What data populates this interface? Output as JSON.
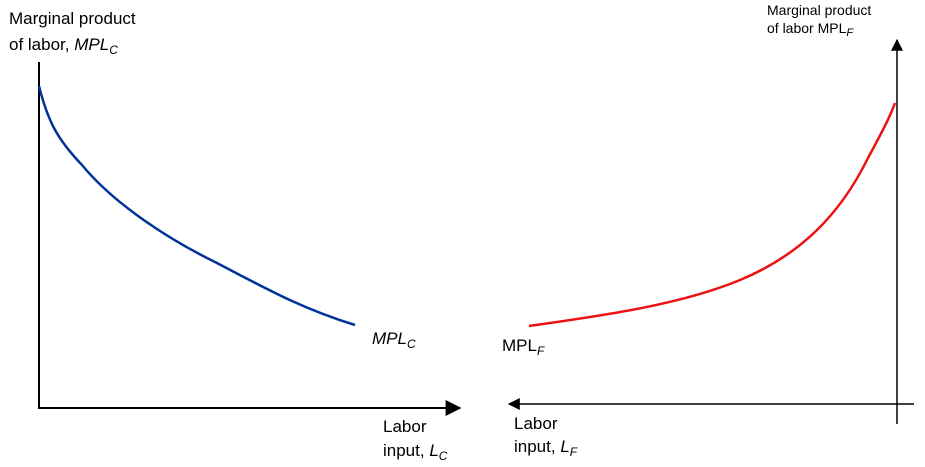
{
  "left_panel": {
    "y_axis_label": {
      "line1": "Marginal product",
      "line2_prefix": "of labor, ",
      "line2_main": "MPL",
      "line2_sub": "C"
    },
    "x_axis_label": {
      "line1": "Labor",
      "line2_prefix": "input, ",
      "line2_main": "L",
      "line2_sub": "C"
    },
    "curve_label": {
      "main": "MPL",
      "sub": "C"
    },
    "curve_color": "#003399",
    "axis_direction": "right"
  },
  "right_panel": {
    "y_axis_label": {
      "line1": "Marginal product",
      "line2_prefix": "of labor ",
      "line2_main": "MPL",
      "line2_sub": "F"
    },
    "x_axis_label": {
      "line1": "Labor",
      "line2_prefix": "input, ",
      "line2_main": "L",
      "line2_sub": "F"
    },
    "curve_label": {
      "main": "MPL",
      "sub": "F"
    },
    "curve_color": "#ee1111",
    "axis_direction": "left"
  }
}
